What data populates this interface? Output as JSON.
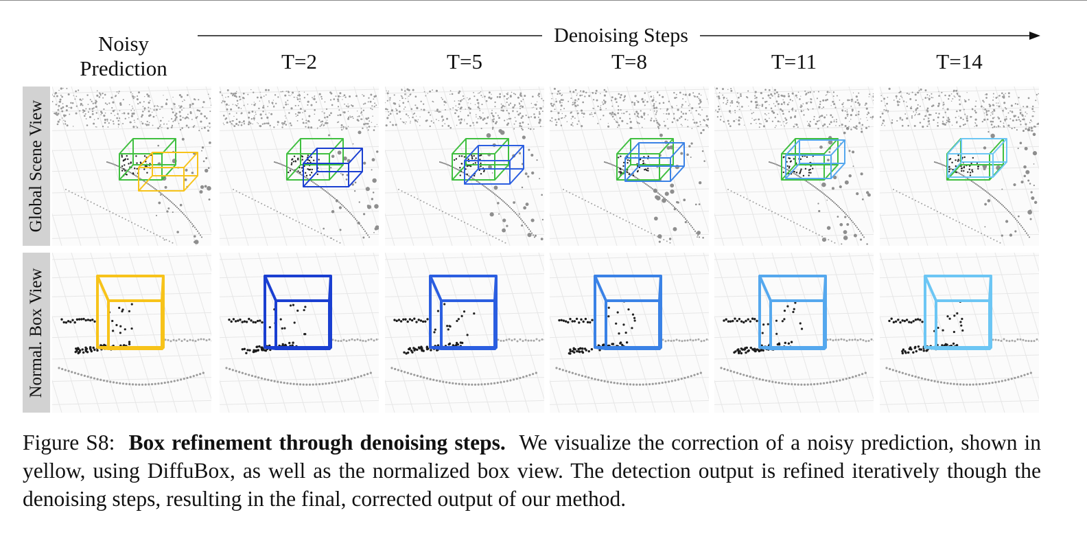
{
  "figure": {
    "header": {
      "noisy_label_line1": "Noisy",
      "noisy_label_line2": "Prediction",
      "steps_title": "Denoising Steps",
      "steps": [
        "T=2",
        "T=5",
        "T=8",
        "T=11",
        "T=14"
      ]
    },
    "rows": [
      {
        "label": "Global Scene View"
      },
      {
        "label": "Normal. Box View"
      }
    ],
    "colors": {
      "noisy_box": "#f7c31a",
      "ground_truth_box": "#3fbf3f",
      "step_boxes": [
        "#1a3fd1",
        "#2b5ee0",
        "#3a82e6",
        "#55a8ee",
        "#6cc6f4"
      ]
    }
  },
  "caption": {
    "prefix": "Figure S8:",
    "title": "Box refinement through denoising steps.",
    "body": "We visualize the correction of a noisy prediction, shown in yellow, using DiffuBox, as well as the normalized box view. The detection output is refined iteratively though the denoising steps, resulting in the final, corrected output of our method."
  }
}
